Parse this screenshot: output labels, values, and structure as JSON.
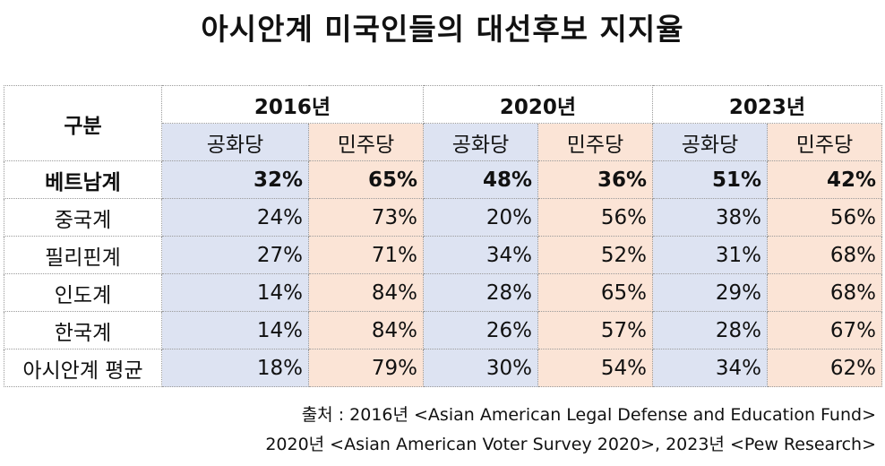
{
  "title": "아시안계 미국인들의 대선후보 지지율",
  "header": {
    "label": "구분",
    "years": [
      "2016년",
      "2020년",
      "2023년"
    ],
    "parties": [
      "공화당",
      "민주당"
    ]
  },
  "rows": [
    {
      "label": "베트남계",
      "values": [
        "32%",
        "65%",
        "48%",
        "36%",
        "51%",
        "42%"
      ],
      "bold": true
    },
    {
      "label": "중국계",
      "values": [
        "24%",
        "73%",
        "20%",
        "56%",
        "38%",
        "56%"
      ]
    },
    {
      "label": "필리핀계",
      "values": [
        "27%",
        "71%",
        "34%",
        "52%",
        "31%",
        "68%"
      ]
    },
    {
      "label": "인도계",
      "values": [
        "14%",
        "84%",
        "28%",
        "65%",
        "29%",
        "68%"
      ]
    },
    {
      "label": "한국계",
      "values": [
        "14%",
        "84%",
        "26%",
        "57%",
        "28%",
        "67%"
      ]
    },
    {
      "label": "아시안계 평균",
      "values": [
        "18%",
        "79%",
        "30%",
        "54%",
        "34%",
        "62%"
      ]
    }
  ],
  "source": {
    "line1": "출처 : 2016년 <Asian American Legal Defense and Education Fund>",
    "line2": "2020년 <Asian American Voter Survey 2020>, 2023년 <Pew Research>"
  },
  "colors": {
    "republican_bg": "#dde3f2",
    "democrat_bg": "#fbe4d6"
  }
}
